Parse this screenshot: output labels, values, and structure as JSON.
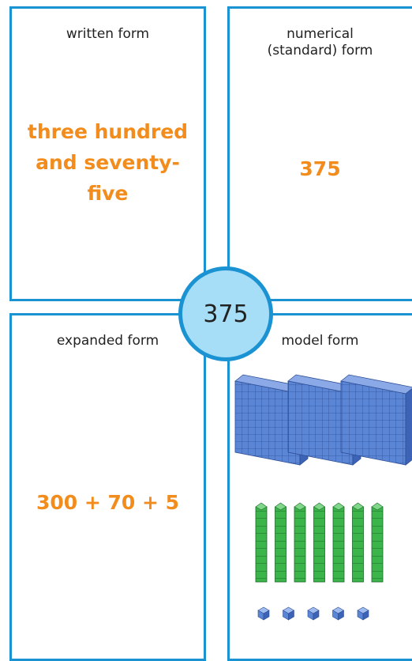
{
  "panels": [
    {
      "title": "written form",
      "value": "three hundred and seventy-five"
    },
    {
      "title": "numerical (standard) form",
      "value": "375"
    },
    {
      "title": "expanded form",
      "value": "300 + 70 + 5"
    },
    {
      "title": "model form"
    }
  ],
  "center": "375"
}
